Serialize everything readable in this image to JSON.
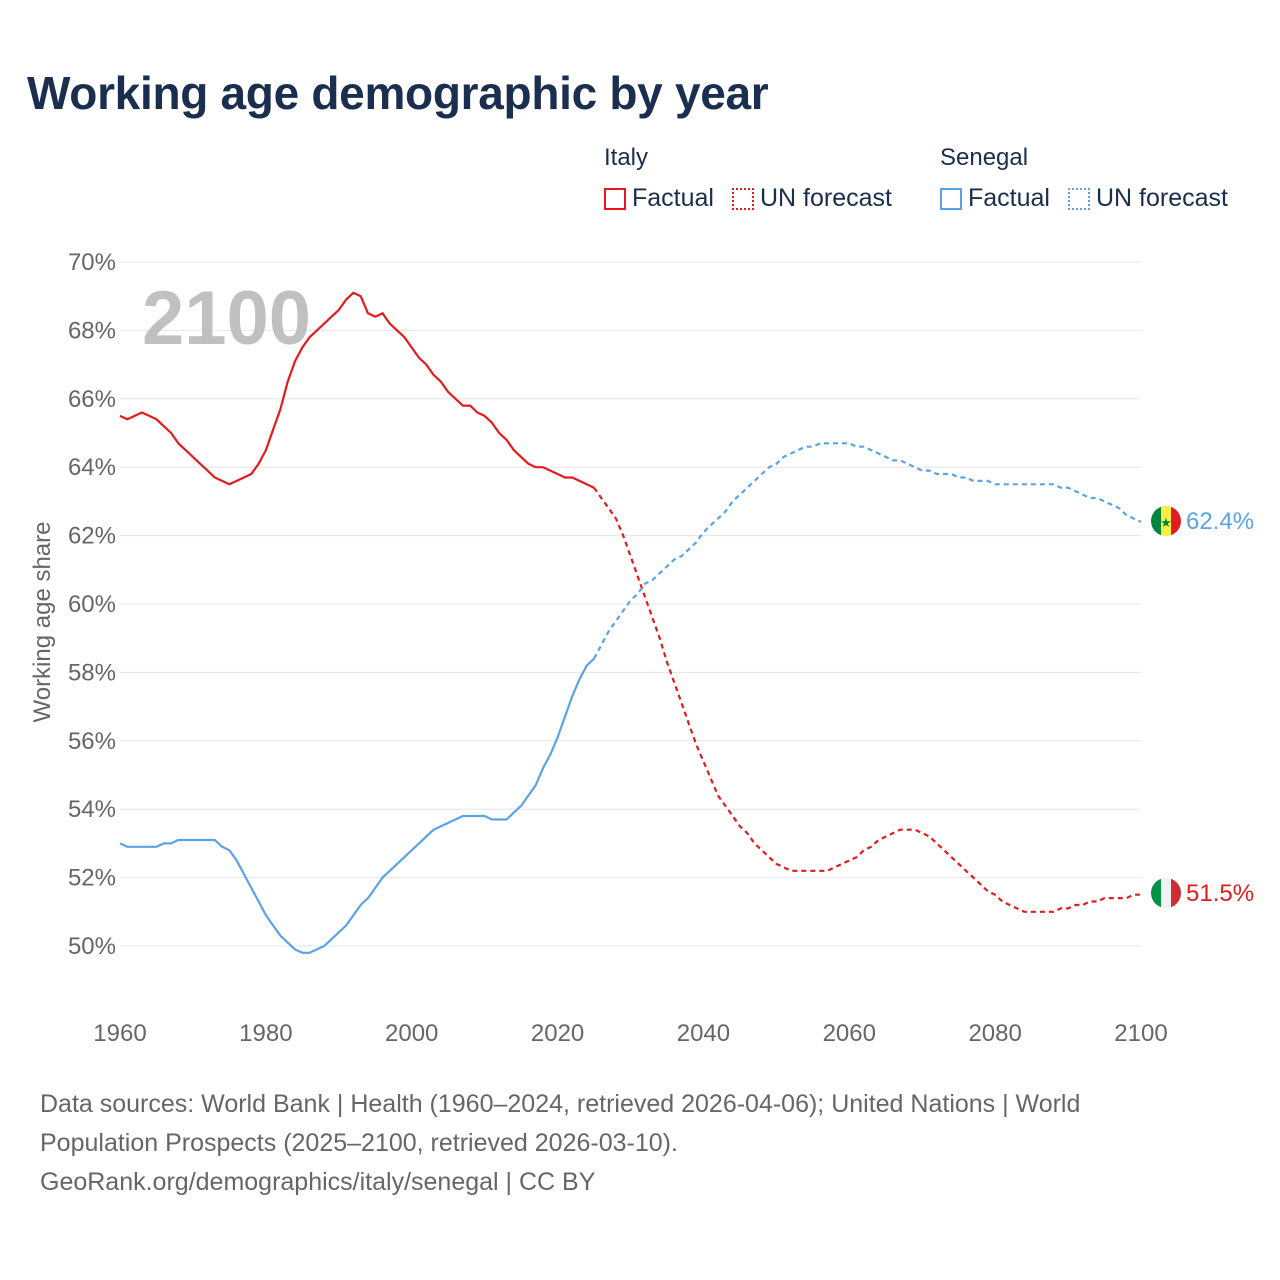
{
  "title": "Working age demographic by year",
  "legend": [
    {
      "name": "Italy",
      "factual_label": "Factual",
      "forecast_label": "UN forecast",
      "color": "#e41a1c"
    },
    {
      "name": "Senegal",
      "factual_label": "Factual",
      "forecast_label": "UN forecast",
      "color": "#5ba3e6"
    }
  ],
  "year_watermark": "2100",
  "footer": {
    "line1": "Data sources: World Bank | Health (1960–2024, retrieved 2026-04-06); United Nations | World",
    "line2": "Population Prospects (2025–2100, retrieved 2026-03-10).",
    "line3": "GeoRank.org/demographics/italy/senegal | CC BY"
  },
  "colors": {
    "grid": "#e6e6e6",
    "axis_text": "#666666",
    "watermark": "#c0c0c0",
    "title": "#1a2e4f"
  },
  "chart_data": {
    "type": "line",
    "title": "Working age demographic by year",
    "xlabel": "",
    "ylabel": "Working age share",
    "xlim": [
      1960,
      2100
    ],
    "ylim": [
      49,
      70
    ],
    "x_ticks": [
      1960,
      1980,
      2000,
      2020,
      2040,
      2060,
      2080,
      2100
    ],
    "y_ticks": [
      50,
      52,
      54,
      56,
      58,
      60,
      62,
      64,
      66,
      68,
      70
    ],
    "y_tick_labels": [
      "50%",
      "52%",
      "54%",
      "56%",
      "58%",
      "60%",
      "62%",
      "64%",
      "66%",
      "68%",
      "70%"
    ],
    "factual_end_year": 2025,
    "series": [
      {
        "name": "Italy",
        "color": "#e41a1c",
        "end_label": "51.5%",
        "flag": "italy-flag",
        "points": [
          [
            1960,
            65.5
          ],
          [
            1961,
            65.4
          ],
          [
            1962,
            65.5
          ],
          [
            1963,
            65.6
          ],
          [
            1964,
            65.5
          ],
          [
            1965,
            65.4
          ],
          [
            1966,
            65.2
          ],
          [
            1967,
            65.0
          ],
          [
            1968,
            64.7
          ],
          [
            1969,
            64.5
          ],
          [
            1970,
            64.3
          ],
          [
            1971,
            64.1
          ],
          [
            1972,
            63.9
          ],
          [
            1973,
            63.7
          ],
          [
            1974,
            63.6
          ],
          [
            1975,
            63.5
          ],
          [
            1976,
            63.6
          ],
          [
            1977,
            63.7
          ],
          [
            1978,
            63.8
          ],
          [
            1979,
            64.1
          ],
          [
            1980,
            64.5
          ],
          [
            1981,
            65.1
          ],
          [
            1982,
            65.7
          ],
          [
            1983,
            66.5
          ],
          [
            1984,
            67.1
          ],
          [
            1985,
            67.5
          ],
          [
            1986,
            67.8
          ],
          [
            1987,
            68.0
          ],
          [
            1988,
            68.2
          ],
          [
            1989,
            68.4
          ],
          [
            1990,
            68.6
          ],
          [
            1991,
            68.9
          ],
          [
            1992,
            69.1
          ],
          [
            1993,
            69.0
          ],
          [
            1994,
            68.5
          ],
          [
            1995,
            68.4
          ],
          [
            1996,
            68.5
          ],
          [
            1997,
            68.2
          ],
          [
            1998,
            68.0
          ],
          [
            1999,
            67.8
          ],
          [
            2000,
            67.5
          ],
          [
            2001,
            67.2
          ],
          [
            2002,
            67.0
          ],
          [
            2003,
            66.7
          ],
          [
            2004,
            66.5
          ],
          [
            2005,
            66.2
          ],
          [
            2006,
            66.0
          ],
          [
            2007,
            65.8
          ],
          [
            2008,
            65.8
          ],
          [
            2009,
            65.6
          ],
          [
            2010,
            65.5
          ],
          [
            2011,
            65.3
          ],
          [
            2012,
            65.0
          ],
          [
            2013,
            64.8
          ],
          [
            2014,
            64.5
          ],
          [
            2015,
            64.3
          ],
          [
            2016,
            64.1
          ],
          [
            2017,
            64.0
          ],
          [
            2018,
            64.0
          ],
          [
            2019,
            63.9
          ],
          [
            2020,
            63.8
          ],
          [
            2021,
            63.7
          ],
          [
            2022,
            63.7
          ],
          [
            2023,
            63.6
          ],
          [
            2024,
            63.5
          ],
          [
            2025,
            63.4
          ],
          [
            2026,
            63.1
          ],
          [
            2027,
            62.8
          ],
          [
            2028,
            62.5
          ],
          [
            2029,
            62.0
          ],
          [
            2030,
            61.4
          ],
          [
            2031,
            60.8
          ],
          [
            2032,
            60.2
          ],
          [
            2033,
            59.6
          ],
          [
            2034,
            59.0
          ],
          [
            2035,
            58.3
          ],
          [
            2036,
            57.7
          ],
          [
            2037,
            57.1
          ],
          [
            2038,
            56.5
          ],
          [
            2039,
            55.9
          ],
          [
            2040,
            55.4
          ],
          [
            2041,
            54.9
          ],
          [
            2042,
            54.4
          ],
          [
            2043,
            54.1
          ],
          [
            2044,
            53.8
          ],
          [
            2045,
            53.5
          ],
          [
            2046,
            53.3
          ],
          [
            2047,
            53.0
          ],
          [
            2048,
            52.8
          ],
          [
            2049,
            52.6
          ],
          [
            2050,
            52.4
          ],
          [
            2051,
            52.3
          ],
          [
            2052,
            52.2
          ],
          [
            2053,
            52.2
          ],
          [
            2054,
            52.2
          ],
          [
            2055,
            52.2
          ],
          [
            2056,
            52.2
          ],
          [
            2057,
            52.2
          ],
          [
            2058,
            52.3
          ],
          [
            2059,
            52.4
          ],
          [
            2060,
            52.5
          ],
          [
            2061,
            52.6
          ],
          [
            2062,
            52.8
          ],
          [
            2063,
            52.9
          ],
          [
            2064,
            53.1
          ],
          [
            2065,
            53.2
          ],
          [
            2066,
            53.3
          ],
          [
            2067,
            53.4
          ],
          [
            2068,
            53.4
          ],
          [
            2069,
            53.4
          ],
          [
            2070,
            53.3
          ],
          [
            2071,
            53.2
          ],
          [
            2072,
            53.0
          ],
          [
            2073,
            52.8
          ],
          [
            2074,
            52.6
          ],
          [
            2075,
            52.4
          ],
          [
            2076,
            52.2
          ],
          [
            2077,
            52.0
          ],
          [
            2078,
            51.8
          ],
          [
            2079,
            51.6
          ],
          [
            2080,
            51.5
          ],
          [
            2081,
            51.3
          ],
          [
            2082,
            51.2
          ],
          [
            2083,
            51.1
          ],
          [
            2084,
            51.0
          ],
          [
            2085,
            51.0
          ],
          [
            2086,
            51.0
          ],
          [
            2087,
            51.0
          ],
          [
            2088,
            51.0
          ],
          [
            2089,
            51.1
          ],
          [
            2090,
            51.1
          ],
          [
            2091,
            51.2
          ],
          [
            2092,
            51.2
          ],
          [
            2093,
            51.3
          ],
          [
            2094,
            51.3
          ],
          [
            2095,
            51.4
          ],
          [
            2096,
            51.4
          ],
          [
            2097,
            51.4
          ],
          [
            2098,
            51.4
          ],
          [
            2099,
            51.5
          ],
          [
            2100,
            51.5
          ]
        ]
      },
      {
        "name": "Senegal",
        "color": "#5ba3e6",
        "end_label": "62.4%",
        "flag": "senegal-flag",
        "points": [
          [
            1960,
            53.0
          ],
          [
            1961,
            52.9
          ],
          [
            1962,
            52.9
          ],
          [
            1963,
            52.9
          ],
          [
            1964,
            52.9
          ],
          [
            1965,
            52.9
          ],
          [
            1966,
            53.0
          ],
          [
            1967,
            53.0
          ],
          [
            1968,
            53.1
          ],
          [
            1969,
            53.1
          ],
          [
            1970,
            53.1
          ],
          [
            1971,
            53.1
          ],
          [
            1972,
            53.1
          ],
          [
            1973,
            53.1
          ],
          [
            1974,
            52.9
          ],
          [
            1975,
            52.8
          ],
          [
            1976,
            52.5
          ],
          [
            1977,
            52.1
          ],
          [
            1978,
            51.7
          ],
          [
            1979,
            51.3
          ],
          [
            1980,
            50.9
          ],
          [
            1981,
            50.6
          ],
          [
            1982,
            50.3
          ],
          [
            1983,
            50.1
          ],
          [
            1984,
            49.9
          ],
          [
            1985,
            49.8
          ],
          [
            1986,
            49.8
          ],
          [
            1987,
            49.9
          ],
          [
            1988,
            50.0
          ],
          [
            1989,
            50.2
          ],
          [
            1990,
            50.4
          ],
          [
            1991,
            50.6
          ],
          [
            1992,
            50.9
          ],
          [
            1993,
            51.2
          ],
          [
            1994,
            51.4
          ],
          [
            1995,
            51.7
          ],
          [
            1996,
            52.0
          ],
          [
            1997,
            52.2
          ],
          [
            1998,
            52.4
          ],
          [
            1999,
            52.6
          ],
          [
            2000,
            52.8
          ],
          [
            2001,
            53.0
          ],
          [
            2002,
            53.2
          ],
          [
            2003,
            53.4
          ],
          [
            2004,
            53.5
          ],
          [
            2005,
            53.6
          ],
          [
            2006,
            53.7
          ],
          [
            2007,
            53.8
          ],
          [
            2008,
            53.8
          ],
          [
            2009,
            53.8
          ],
          [
            2010,
            53.8
          ],
          [
            2011,
            53.7
          ],
          [
            2012,
            53.7
          ],
          [
            2013,
            53.7
          ],
          [
            2014,
            53.9
          ],
          [
            2015,
            54.1
          ],
          [
            2016,
            54.4
          ],
          [
            2017,
            54.7
          ],
          [
            2018,
            55.2
          ],
          [
            2019,
            55.6
          ],
          [
            2020,
            56.1
          ],
          [
            2021,
            56.7
          ],
          [
            2022,
            57.3
          ],
          [
            2023,
            57.8
          ],
          [
            2024,
            58.2
          ],
          [
            2025,
            58.4
          ],
          [
            2026,
            58.8
          ],
          [
            2027,
            59.2
          ],
          [
            2028,
            59.5
          ],
          [
            2029,
            59.8
          ],
          [
            2030,
            60.1
          ],
          [
            2031,
            60.3
          ],
          [
            2032,
            60.6
          ],
          [
            2033,
            60.7
          ],
          [
            2034,
            60.9
          ],
          [
            2035,
            61.1
          ],
          [
            2036,
            61.3
          ],
          [
            2037,
            61.4
          ],
          [
            2038,
            61.6
          ],
          [
            2039,
            61.8
          ],
          [
            2040,
            62.1
          ],
          [
            2041,
            62.3
          ],
          [
            2042,
            62.5
          ],
          [
            2043,
            62.7
          ],
          [
            2044,
            63.0
          ],
          [
            2045,
            63.2
          ],
          [
            2046,
            63.4
          ],
          [
            2047,
            63.6
          ],
          [
            2048,
            63.8
          ],
          [
            2049,
            64.0
          ],
          [
            2050,
            64.1
          ],
          [
            2051,
            64.3
          ],
          [
            2052,
            64.4
          ],
          [
            2053,
            64.5
          ],
          [
            2054,
            64.6
          ],
          [
            2055,
            64.6
          ],
          [
            2056,
            64.7
          ],
          [
            2057,
            64.7
          ],
          [
            2058,
            64.7
          ],
          [
            2059,
            64.7
          ],
          [
            2060,
            64.7
          ],
          [
            2061,
            64.6
          ],
          [
            2062,
            64.6
          ],
          [
            2063,
            64.5
          ],
          [
            2064,
            64.4
          ],
          [
            2065,
            64.3
          ],
          [
            2066,
            64.2
          ],
          [
            2067,
            64.2
          ],
          [
            2068,
            64.1
          ],
          [
            2069,
            64.0
          ],
          [
            2070,
            63.9
          ],
          [
            2071,
            63.9
          ],
          [
            2072,
            63.8
          ],
          [
            2073,
            63.8
          ],
          [
            2074,
            63.8
          ],
          [
            2075,
            63.7
          ],
          [
            2076,
            63.7
          ],
          [
            2077,
            63.6
          ],
          [
            2078,
            63.6
          ],
          [
            2079,
            63.6
          ],
          [
            2080,
            63.5
          ],
          [
            2081,
            63.5
          ],
          [
            2082,
            63.5
          ],
          [
            2083,
            63.5
          ],
          [
            2084,
            63.5
          ],
          [
            2085,
            63.5
          ],
          [
            2086,
            63.5
          ],
          [
            2087,
            63.5
          ],
          [
            2088,
            63.5
          ],
          [
            2089,
            63.4
          ],
          [
            2090,
            63.4
          ],
          [
            2091,
            63.3
          ],
          [
            2092,
            63.2
          ],
          [
            2093,
            63.1
          ],
          [
            2094,
            63.1
          ],
          [
            2095,
            63.0
          ],
          [
            2096,
            62.9
          ],
          [
            2097,
            62.8
          ],
          [
            2098,
            62.6
          ],
          [
            2099,
            62.5
          ],
          [
            2100,
            62.4
          ]
        ]
      }
    ]
  }
}
